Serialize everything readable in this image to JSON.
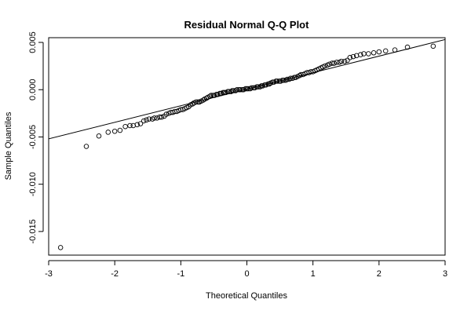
{
  "chart_data": {
    "type": "scatter",
    "title": "Residual Normal Q-Q Plot",
    "xlabel": "Theoretical Quantiles",
    "ylabel": "Sample Quantiles",
    "xlim": [
      -3,
      3
    ],
    "ylim": [
      -0.0175,
      0.0055
    ],
    "x_ticks": [
      -3,
      -2,
      -1,
      0,
      1,
      2,
      3
    ],
    "x_tick_labels": [
      "-3",
      "-2",
      "-1",
      "0",
      "1",
      "2",
      "3"
    ],
    "y_ticks": [
      -0.015,
      -0.01,
      -0.005,
      0.0,
      0.005
    ],
    "y_tick_labels": [
      "-0.015",
      "-0.010",
      "-0.005",
      "0.000",
      "0.005"
    ],
    "reference_line": {
      "intercept": 5e-05,
      "slope": 0.00175
    },
    "points": [
      [
        -2.82,
        -0.0167
      ],
      [
        -2.43,
        -0.006
      ],
      [
        -2.24,
        -0.0049
      ],
      [
        -2.1,
        -0.0045
      ],
      [
        -2.0,
        -0.0044
      ],
      [
        -1.92,
        -0.0043
      ],
      [
        -1.84,
        -0.0039
      ],
      [
        -1.77,
        -0.0038
      ],
      [
        -1.72,
        -0.0038
      ],
      [
        -1.66,
        -0.0037
      ],
      [
        -1.61,
        -0.0036
      ],
      [
        -1.56,
        -0.0033
      ],
      [
        -1.52,
        -0.0032
      ],
      [
        -1.48,
        -0.0031
      ],
      [
        -1.43,
        -0.0031
      ],
      [
        -1.4,
        -0.003
      ],
      [
        -1.36,
        -0.003
      ],
      [
        -1.32,
        -0.0029
      ],
      [
        -1.29,
        -0.0029
      ],
      [
        -1.25,
        -0.0028
      ],
      [
        -1.22,
        -0.0026
      ],
      [
        -1.18,
        -0.0025
      ],
      [
        -1.15,
        -0.0024
      ],
      [
        -1.12,
        -0.0024
      ],
      [
        -1.09,
        -0.0023
      ],
      [
        -1.06,
        -0.0023
      ],
      [
        -1.03,
        -0.0022
      ],
      [
        -1.0,
        -0.0021
      ],
      [
        -0.97,
        -0.0021
      ],
      [
        -0.94,
        -0.002
      ],
      [
        -0.91,
        -0.0019
      ],
      [
        -0.88,
        -0.0018
      ],
      [
        -0.85,
        -0.0016
      ],
      [
        -0.82,
        -0.0015
      ],
      [
        -0.8,
        -0.0014
      ],
      [
        -0.77,
        -0.0013
      ],
      [
        -0.74,
        -0.0013
      ],
      [
        -0.72,
        -0.0013
      ],
      [
        -0.69,
        -0.0012
      ],
      [
        -0.66,
        -0.0011
      ],
      [
        -0.64,
        -0.001
      ],
      [
        -0.61,
        -0.0009
      ],
      [
        -0.59,
        -0.0008
      ],
      [
        -0.56,
        -0.0007
      ],
      [
        -0.54,
        -0.0006
      ],
      [
        -0.51,
        -0.0006
      ],
      [
        -0.49,
        -0.0006
      ],
      [
        -0.46,
        -0.0005
      ],
      [
        -0.44,
        -0.0005
      ],
      [
        -0.41,
        -0.0004
      ],
      [
        -0.39,
        -0.0004
      ],
      [
        -0.36,
        -0.0003
      ],
      [
        -0.34,
        -0.0003
      ],
      [
        -0.32,
        -0.0003
      ],
      [
        -0.29,
        -0.0002
      ],
      [
        -0.27,
        -0.0002
      ],
      [
        -0.24,
        -0.0002
      ],
      [
        -0.22,
        -0.0001
      ],
      [
        -0.2,
        -0.0001
      ],
      [
        -0.17,
        -0.0001
      ],
      [
        -0.15,
        0.0
      ],
      [
        -0.12,
        0.0
      ],
      [
        -0.1,
        0.0
      ],
      [
        -0.07,
        0.0
      ],
      [
        -0.05,
        0.0
      ],
      [
        -0.02,
        0.0001
      ],
      [
        0.0,
        0.0001
      ],
      [
        0.02,
        0.0001
      ],
      [
        0.05,
        0.0001
      ],
      [
        0.07,
        0.0002
      ],
      [
        0.1,
        0.0002
      ],
      [
        0.12,
        0.0002
      ],
      [
        0.15,
        0.0003
      ],
      [
        0.17,
        0.0003
      ],
      [
        0.2,
        0.0003
      ],
      [
        0.22,
        0.0004
      ],
      [
        0.24,
        0.0004
      ],
      [
        0.27,
        0.0005
      ],
      [
        0.29,
        0.0005
      ],
      [
        0.32,
        0.0006
      ],
      [
        0.34,
        0.0006
      ],
      [
        0.36,
        0.0007
      ],
      [
        0.39,
        0.0008
      ],
      [
        0.41,
        0.0008
      ],
      [
        0.44,
        0.0009
      ],
      [
        0.46,
        0.0009
      ],
      [
        0.49,
        0.0009
      ],
      [
        0.51,
        0.0009
      ],
      [
        0.54,
        0.001
      ],
      [
        0.56,
        0.001
      ],
      [
        0.59,
        0.001
      ],
      [
        0.61,
        0.0011
      ],
      [
        0.64,
        0.0011
      ],
      [
        0.66,
        0.0012
      ],
      [
        0.69,
        0.0012
      ],
      [
        0.72,
        0.0013
      ],
      [
        0.74,
        0.0013
      ],
      [
        0.77,
        0.0014
      ],
      [
        0.8,
        0.0015
      ],
      [
        0.82,
        0.0016
      ],
      [
        0.85,
        0.0016
      ],
      [
        0.88,
        0.0017
      ],
      [
        0.91,
        0.0018
      ],
      [
        0.94,
        0.0018
      ],
      [
        0.97,
        0.0019
      ],
      [
        1.0,
        0.0019
      ],
      [
        1.03,
        0.002
      ],
      [
        1.06,
        0.0021
      ],
      [
        1.09,
        0.0022
      ],
      [
        1.12,
        0.0023
      ],
      [
        1.15,
        0.0024
      ],
      [
        1.18,
        0.0025
      ],
      [
        1.22,
        0.0026
      ],
      [
        1.25,
        0.0027
      ],
      [
        1.29,
        0.0028
      ],
      [
        1.32,
        0.0028
      ],
      [
        1.36,
        0.0029
      ],
      [
        1.4,
        0.0029
      ],
      [
        1.43,
        0.003
      ],
      [
        1.48,
        0.003
      ],
      [
        1.52,
        0.0031
      ],
      [
        1.56,
        0.0034
      ],
      [
        1.61,
        0.0035
      ],
      [
        1.66,
        0.0036
      ],
      [
        1.72,
        0.0037
      ],
      [
        1.77,
        0.0038
      ],
      [
        1.84,
        0.0038
      ],
      [
        1.92,
        0.0039
      ],
      [
        2.0,
        0.004
      ],
      [
        2.1,
        0.0041
      ],
      [
        2.24,
        0.0042
      ],
      [
        2.43,
        0.0045
      ],
      [
        2.82,
        0.0046
      ]
    ]
  }
}
